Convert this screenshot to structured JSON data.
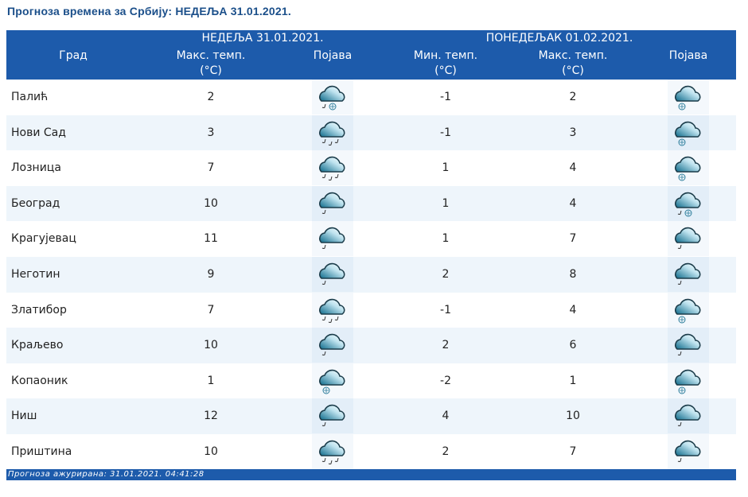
{
  "title": "Прогноза времена за Србију: НЕДЕЉА  31.01.2021.",
  "header": {
    "city": "Град",
    "day1": "НЕДЕЉА  31.01.2021.",
    "day2": "ПОНЕДЕЉАК  01.02.2021.",
    "max": "Макс. темп.",
    "min": "Мин. темп.",
    "unit": "(°C)",
    "phenomenon": "Појава"
  },
  "rows": [
    {
      "city": "Палић",
      "d1max": "2",
      "d1icon": "rain-snow",
      "d2min": "-1",
      "d2max": "2",
      "d2icon": "snow"
    },
    {
      "city": "Нови Сад",
      "d1max": "3",
      "d1icon": "rain",
      "d2min": "-1",
      "d2max": "3",
      "d2icon": "snow"
    },
    {
      "city": "Лозница",
      "d1max": "7",
      "d1icon": "rain",
      "d2min": "1",
      "d2max": "4",
      "d2icon": "snow"
    },
    {
      "city": "Београд",
      "d1max": "10",
      "d1icon": "light-rain",
      "d2min": "1",
      "d2max": "4",
      "d2icon": "rain-snow"
    },
    {
      "city": "Крагујевац",
      "d1max": "11",
      "d1icon": "light-rain",
      "d2min": "1",
      "d2max": "7",
      "d2icon": "light-rain"
    },
    {
      "city": "Неготин",
      "d1max": "9",
      "d1icon": "light-rain",
      "d2min": "2",
      "d2max": "8",
      "d2icon": "light-rain"
    },
    {
      "city": "Златибор",
      "d1max": "7",
      "d1icon": "rain",
      "d2min": "-1",
      "d2max": "4",
      "d2icon": "snow"
    },
    {
      "city": "Краљево",
      "d1max": "10",
      "d1icon": "light-rain",
      "d2min": "2",
      "d2max": "6",
      "d2icon": "light-rain"
    },
    {
      "city": "Копаоник",
      "d1max": "1",
      "d1icon": "snow",
      "d2min": "-2",
      "d2max": "1",
      "d2icon": "snow"
    },
    {
      "city": "Ниш",
      "d1max": "12",
      "d1icon": "light-rain",
      "d2min": "4",
      "d2max": "10",
      "d2icon": "light-rain"
    },
    {
      "city": "Приштина",
      "d1max": "10",
      "d1icon": "rain",
      "d2min": "2",
      "d2max": "7",
      "d2icon": "light-rain"
    }
  ],
  "footer": "Прогноза ажурирана:  31.01.2021. 04:41:28",
  "colors": {
    "header": "#1d5bab",
    "title": "#1b4f8a",
    "alt_row": "#eef5fb"
  }
}
